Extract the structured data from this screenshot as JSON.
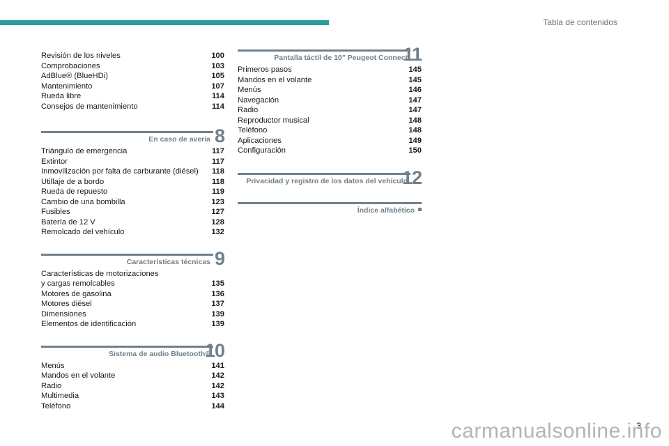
{
  "header": {
    "title": "Tabla de contenidos",
    "accent_color": "#2a9d9c"
  },
  "left": {
    "intro": [
      {
        "label": "Revisión de los niveles",
        "page": "100"
      },
      {
        "label": "Comprobaciones",
        "page": "103"
      },
      {
        "label": "AdBlue® (BlueHDi)",
        "page": "105"
      },
      {
        "label": "Mantenimiento",
        "page": "107"
      },
      {
        "label": "Rueda libre",
        "page": "114"
      },
      {
        "label": "Consejos de mantenimiento",
        "page": "114"
      }
    ],
    "sections": [
      {
        "number": "8",
        "title": "En caso de avería",
        "items": [
          {
            "label": "Triángulo de emergencia",
            "page": "117"
          },
          {
            "label": "Extintor",
            "page": "117"
          },
          {
            "label": "Inmovilización por falta de carburante (diésel)",
            "page": "118"
          },
          {
            "label": "Utillaje de a bordo",
            "page": "118"
          },
          {
            "label": "Rueda de repuesto",
            "page": "119"
          },
          {
            "label": "Cambio de una bombilla",
            "page": "123"
          },
          {
            "label": "Fusibles",
            "page": "127"
          },
          {
            "label": "Batería de 12 V",
            "page": "128"
          },
          {
            "label": "Remolcado del vehículo",
            "page": "132"
          }
        ]
      },
      {
        "number": "9",
        "title": "Características técnicas",
        "items": [
          {
            "label": "Características de motorizaciones",
            "page": ""
          },
          {
            "label": "y cargas remolcables",
            "page": "135"
          },
          {
            "label": "Motores de gasolina",
            "page": "136"
          },
          {
            "label": "Motores diésel",
            "page": "137"
          },
          {
            "label": "Dimensiones",
            "page": "139"
          },
          {
            "label": "Elementos de identificación",
            "page": "139"
          }
        ]
      },
      {
        "number": "10",
        "title": "Sistema de audio Bluetooth®",
        "items": [
          {
            "label": "Menús",
            "page": "141"
          },
          {
            "label": "Mandos en el volante",
            "page": "142"
          },
          {
            "label": "Radio",
            "page": "142"
          },
          {
            "label": "Multimedia",
            "page": "143"
          },
          {
            "label": "Teléfono",
            "page": "144"
          }
        ]
      }
    ]
  },
  "right": {
    "sections": [
      {
        "number": "11",
        "title": "Pantalla táctil de 10\" Peugeot Connect",
        "items": [
          {
            "label": "Primeros pasos",
            "page": "145"
          },
          {
            "label": "Mandos en el volante",
            "page": "145"
          },
          {
            "label": "Menús",
            "page": "146"
          },
          {
            "label": "Navegación",
            "page": "147"
          },
          {
            "label": "Radio",
            "page": "147"
          },
          {
            "label": "Reproductor musical",
            "page": "148"
          },
          {
            "label": "Teléfono",
            "page": "148"
          },
          {
            "label": "Aplicaciones",
            "page": "149"
          },
          {
            "label": "Configuración",
            "page": "150"
          }
        ]
      },
      {
        "number": "12",
        "title": "Privacidad y registro de los datos del vehículo",
        "items": []
      }
    ],
    "index": {
      "title": "Índice alfabético"
    }
  },
  "footer": {
    "page_number": "3",
    "watermark": "carmanualsonline.info"
  },
  "colors": {
    "section_gray": "#72808a",
    "text": "#1a1a1a"
  }
}
